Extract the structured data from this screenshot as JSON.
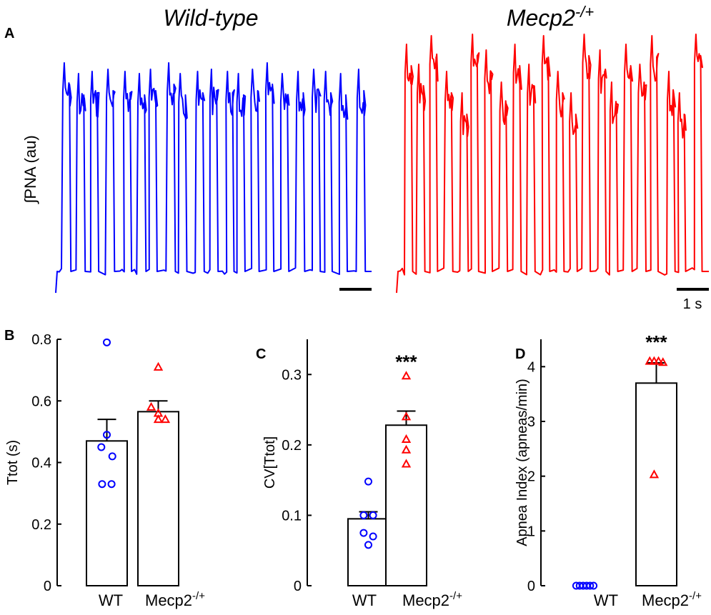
{
  "colors": {
    "wt": "#0000ff",
    "mecp2": "#ff0000",
    "axis": "#000000"
  },
  "panelA": {
    "panel_label": "A",
    "title_wt": "Wild-type",
    "title_mecp2_main": "Mecp2",
    "title_mecp2_sup": "-/+",
    "ylabel": "∫PNA (au)",
    "scalebar_label": "1 s",
    "wt_bursts": 21,
    "mecp2_bursts": 22
  },
  "chart_data": [
    {
      "panel": "B",
      "type": "bar",
      "categories": [
        "WT",
        "Mecp2"
      ],
      "category_sup": [
        "",
        "-/+"
      ],
      "ylabel": "Ttot (s)",
      "ylim": [
        0,
        0.8
      ],
      "yticks": [
        0,
        0.2,
        0.4,
        0.6,
        0.8
      ],
      "ytick_labels": [
        "0",
        "0.2",
        "0.4",
        "0.6",
        "0.8"
      ],
      "means": [
        0.47,
        0.565
      ],
      "sem": [
        0.07,
        0.035
      ],
      "points": [
        [
          0.79,
          0.49,
          0.45,
          0.42,
          0.33,
          0.33
        ],
        [
          0.71,
          0.58,
          0.56,
          0.54,
          0.54
        ]
      ],
      "point_offsets": [
        [
          0,
          0,
          -0.35,
          0.35,
          -0.3,
          0.3
        ],
        [
          0,
          -0.45,
          0,
          0.45,
          0
        ]
      ],
      "significance": ""
    },
    {
      "panel": "C",
      "type": "bar",
      "categories": [
        "WT",
        "Mecp2"
      ],
      "category_sup": [
        "",
        "-/+"
      ],
      "ylabel": "CV[Ttot]",
      "ylim": [
        0,
        0.35
      ],
      "yticks": [
        0,
        0.1,
        0.2,
        0.3
      ],
      "ytick_labels": [
        "0",
        "0.1",
        "0.2",
        "0.3"
      ],
      "means": [
        0.095,
        0.228
      ],
      "sem": [
        0.01,
        0.02
      ],
      "points": [
        [
          0.148,
          0.1,
          0.1,
          0.075,
          0.07,
          0.058
        ],
        [
          0.298,
          0.24,
          0.208,
          0.193,
          0.173
        ]
      ],
      "point_offsets": [
        [
          0,
          -0.3,
          0.3,
          -0.3,
          0.3,
          0
        ],
        [
          0,
          0,
          0,
          0,
          0
        ]
      ],
      "significance": "***"
    },
    {
      "panel": "D",
      "type": "bar",
      "categories": [
        "WT",
        "Mecp2"
      ],
      "category_sup": [
        "",
        "-/+"
      ],
      "ylabel": "Apnea Index (apneas/min)",
      "ylim": [
        0,
        4.5
      ],
      "yticks": [
        0,
        1,
        2,
        3,
        4
      ],
      "ytick_labels": [
        "0",
        "1",
        "2",
        "3",
        "4"
      ],
      "means": [
        0,
        3.7
      ],
      "sem": [
        0,
        0.37
      ],
      "points": [
        [
          0,
          0,
          0,
          0,
          0,
          0
        ],
        [
          4.1,
          4.1,
          4.1,
          4.08,
          2.03
        ]
      ],
      "point_offsets": [
        [
          -0.55,
          -0.33,
          -0.11,
          0.11,
          0.33,
          0.55
        ],
        [
          -0.42,
          -0.14,
          0.14,
          0.42,
          -0.14
        ]
      ],
      "significance": "***"
    }
  ]
}
